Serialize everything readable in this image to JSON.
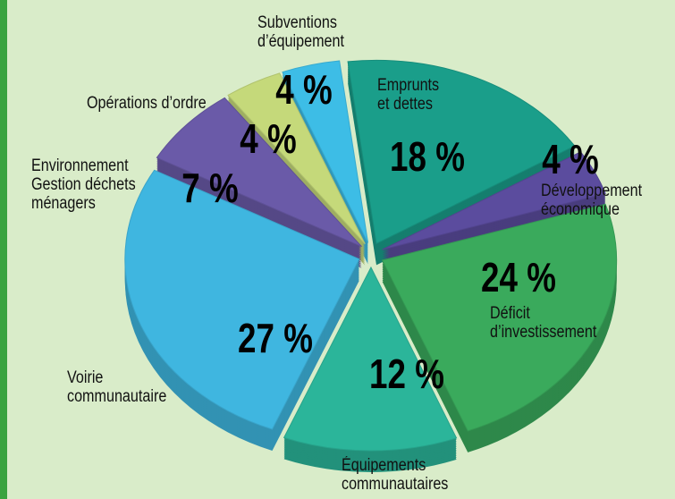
{
  "chart_data": {
    "type": "pie",
    "categories": [
      "Emprunts\net dettes",
      "Développement\néconomique",
      "Déficit\nd’investissement",
      "Équipements\ncommunautaires",
      "Voirie\ncommunautaire",
      "Environnement\nGestion déchets\nménagers",
      "Opérations d’ordre",
      "Subventions\nd’équipement"
    ],
    "values": [
      18,
      4,
      24,
      12,
      27,
      7,
      4,
      4
    ],
    "value_labels": [
      "18 %",
      "4 %",
      "24 %",
      "12 %",
      "27 %",
      "7 %",
      "4 %",
      "4 %"
    ],
    "colors": [
      "#1a9e8a",
      "#5b4c9e",
      "#3aaa5c",
      "#2bb59a",
      "#3fb6e0",
      "#6a5aa8",
      "#c5d97a",
      "#3dbde6"
    ]
  }
}
